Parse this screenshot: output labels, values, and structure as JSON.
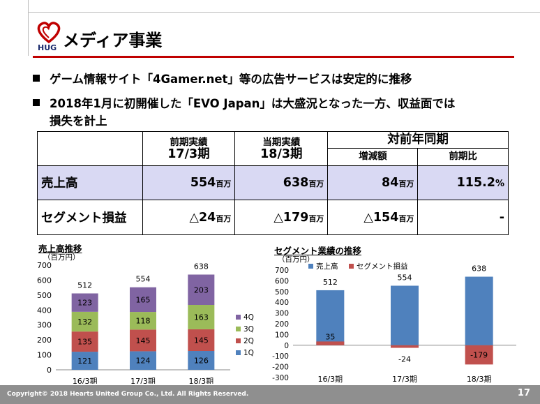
{
  "header": {
    "title": "メディア事業",
    "logo_text": "HUG"
  },
  "bullets": [
    "ゲーム情報サイト「4Gamer.net」等の広告サービスは安定的に推移",
    "2018年1月に初開催した「EVO Japan」は大盛況となった一方、収益面では",
    "損失を計上"
  ],
  "table": {
    "col_prev": "前期実績",
    "col_prev_period": "17/3期",
    "col_cur": "当期実績",
    "col_cur_period": "18/3期",
    "col_yoy": "対前年同期",
    "col_change": "増減額",
    "col_ratio": "前期比",
    "rows": [
      {
        "label": "売上高",
        "prev": "554",
        "prev_unit": "百万",
        "cur": "638",
        "cur_unit": "百万",
        "change": "84",
        "change_unit": "百万",
        "ratio": "115.2",
        "ratio_unit": "%"
      },
      {
        "label": "セグメント損益",
        "prev": "△24",
        "prev_unit": "百万",
        "cur": "△179",
        "cur_unit": "百万",
        "change": "△154",
        "change_unit": "百万",
        "ratio": "-",
        "ratio_unit": ""
      }
    ]
  },
  "chart_data": [
    {
      "type": "bar",
      "stacked": true,
      "title": "売上高推移",
      "unit_label": "（百万円）",
      "categories": [
        "16/3期",
        "17/3期",
        "18/3期"
      ],
      "ylim": [
        0,
        700
      ],
      "yticks": [
        "0",
        "100",
        "200",
        "300",
        "400",
        "500",
        "600",
        "700"
      ],
      "series": [
        {
          "name": "1Q",
          "color": "#4f81bd",
          "values": [
            121,
            124,
            126
          ]
        },
        {
          "name": "2Q",
          "color": "#c0504d",
          "values": [
            135,
            145,
            145
          ]
        },
        {
          "name": "3Q",
          "color": "#9bbb59",
          "values": [
            132,
            118,
            163
          ]
        },
        {
          "name": "4Q",
          "color": "#8064a2",
          "values": [
            123,
            165,
            203
          ]
        }
      ],
      "totals": [
        "512",
        "554",
        "638"
      ],
      "legend_position": "right"
    },
    {
      "type": "bar",
      "title": "セグメント業績の推移",
      "unit_label": "（百万円）",
      "categories": [
        "16/3期",
        "17/3期",
        "18/3期"
      ],
      "ylim": [
        -300,
        700
      ],
      "yticks": [
        "-300",
        "-200",
        "-100",
        "0",
        "100",
        "200",
        "300",
        "400",
        "500",
        "600",
        "700"
      ],
      "series": [
        {
          "name": "売上高",
          "color": "#4f81bd",
          "values": [
            512,
            554,
            638
          ],
          "labels": [
            "512",
            "554",
            "638"
          ]
        },
        {
          "name": "セグメント損益",
          "color": "#c0504d",
          "values": [
            35,
            -24,
            -179
          ],
          "labels": [
            "35",
            "-24",
            "-179"
          ]
        }
      ],
      "legend_position": "top"
    }
  ],
  "footer": {
    "copyright": "Copyright© 2018 Hearts United Group Co., Ltd. All Rights Reserved.",
    "page": "17"
  }
}
